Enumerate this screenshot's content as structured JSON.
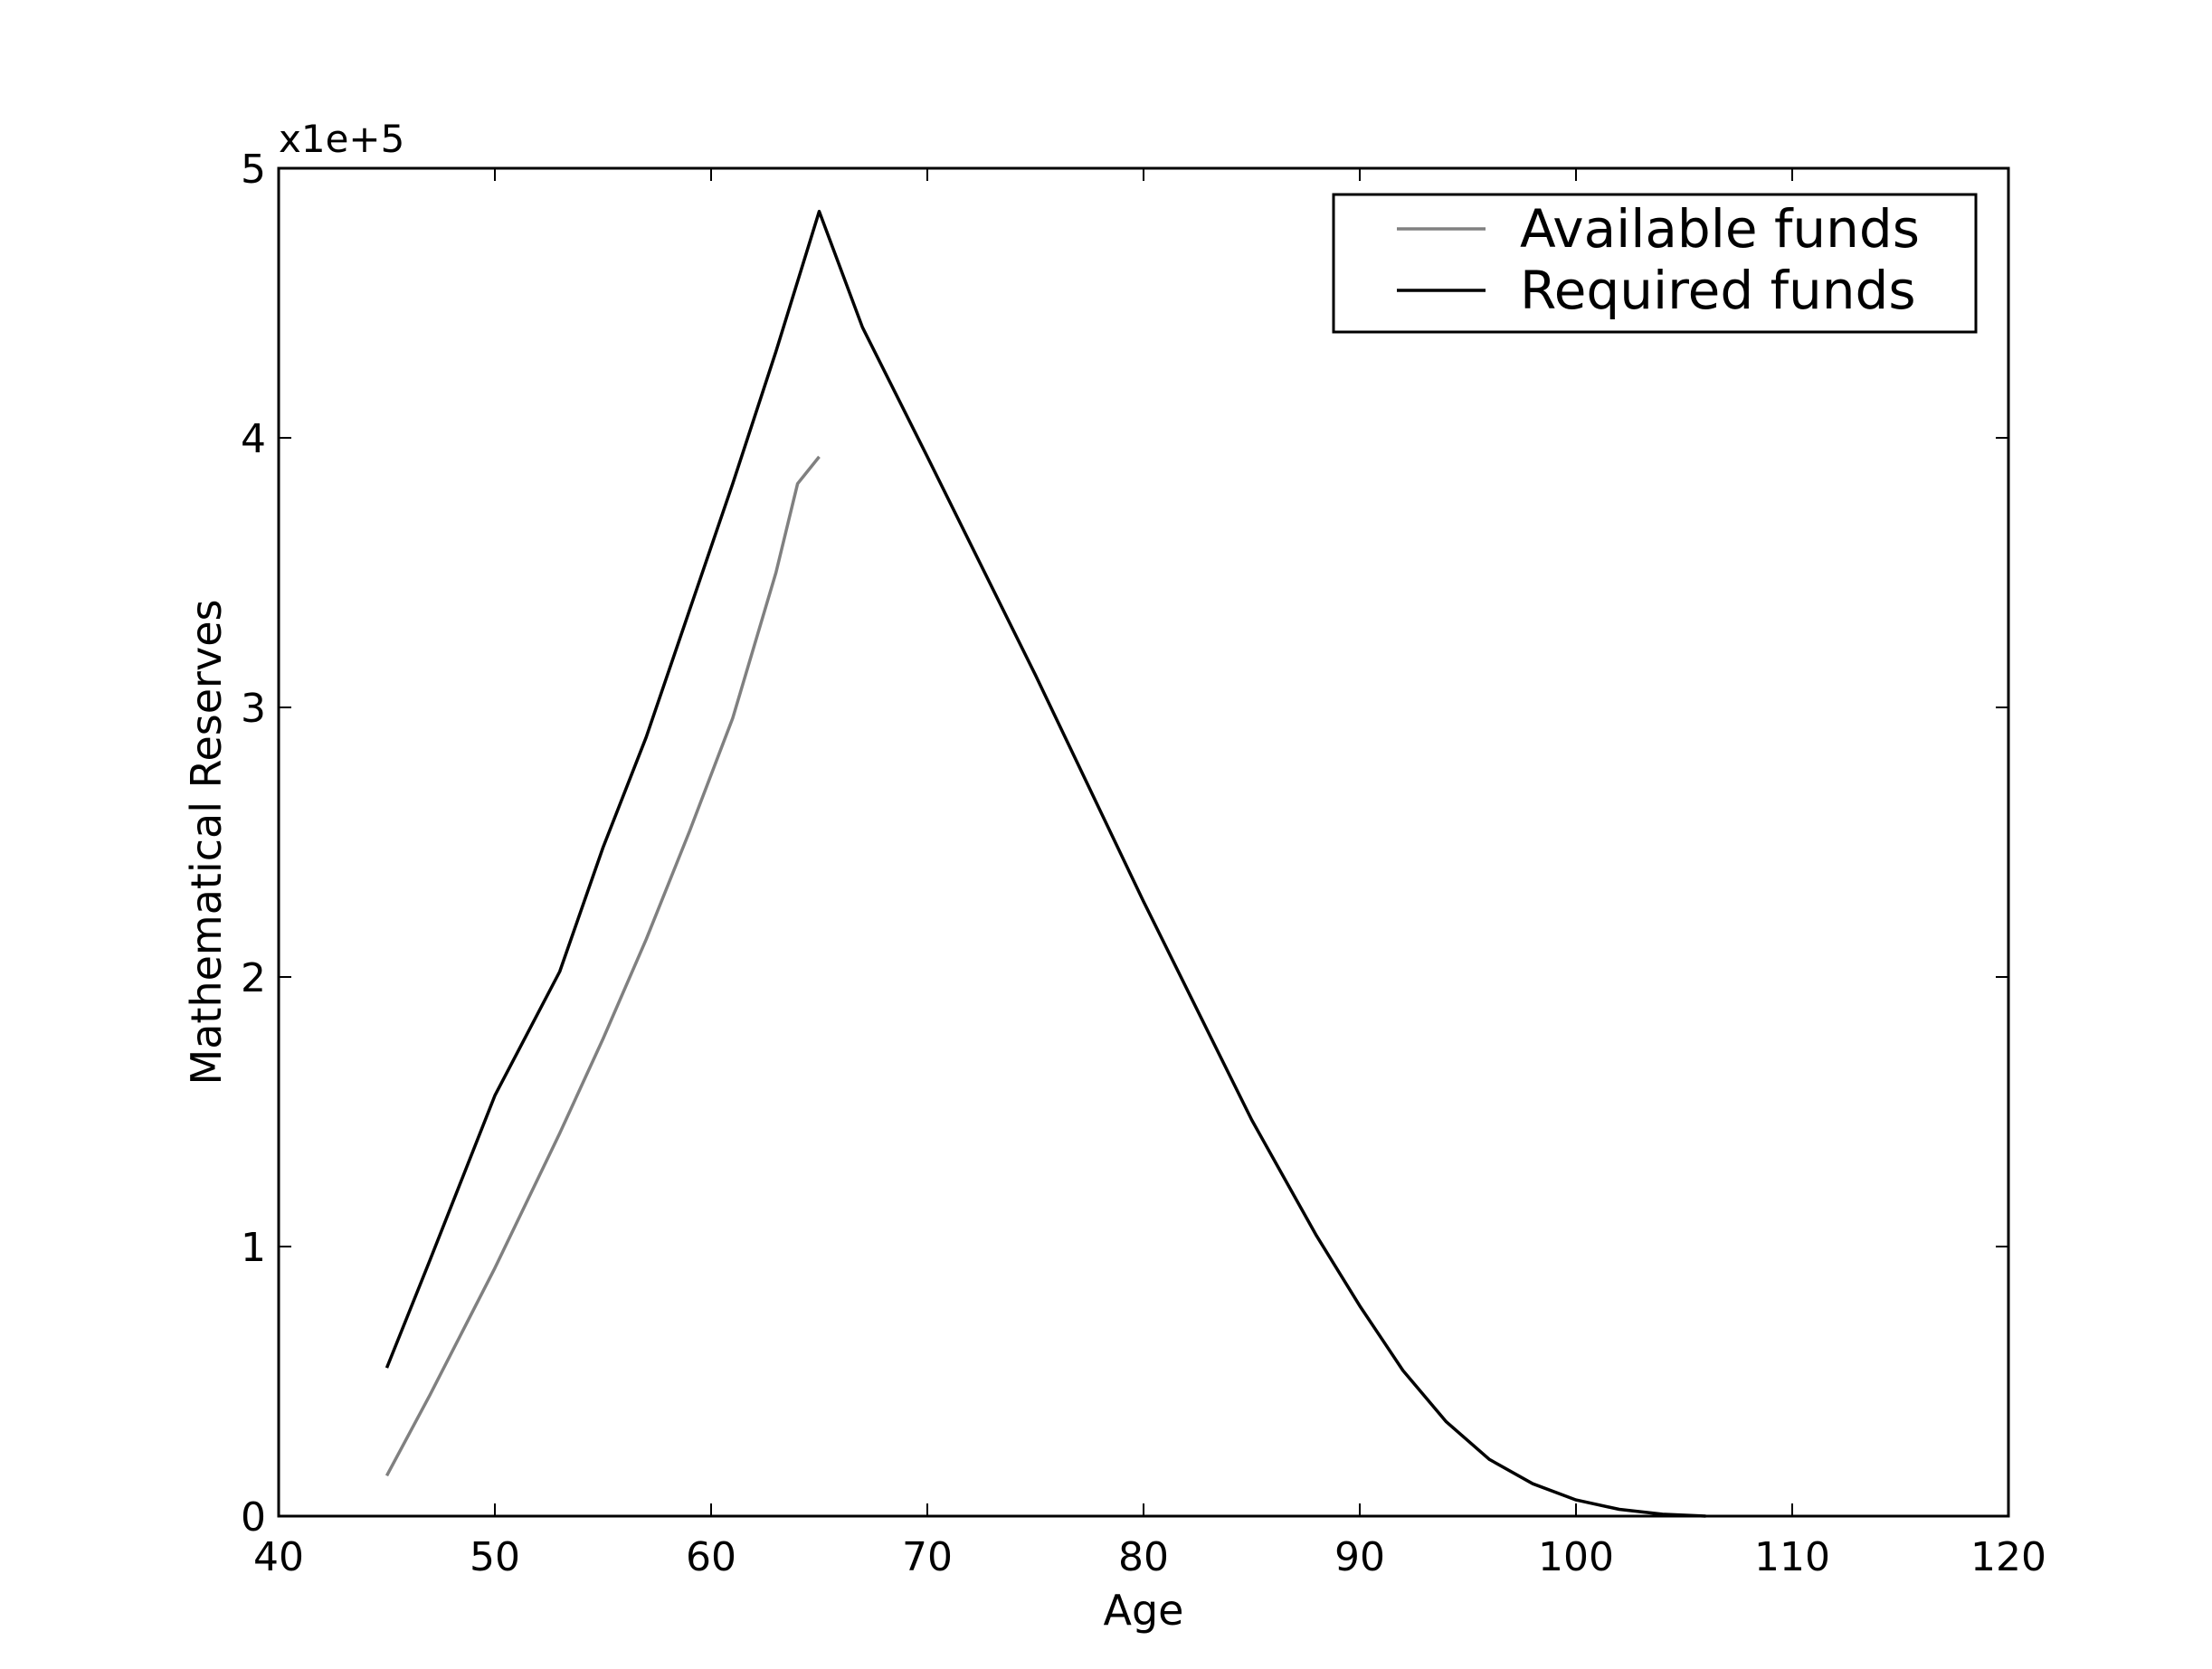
{
  "chart_data": {
    "type": "line",
    "title": "",
    "xlabel": "Age",
    "ylabel": "Mathematical Reserves",
    "xlim": [
      40,
      120
    ],
    "ylim": [
      0,
      5
    ],
    "y_offset_label": "x1e+5",
    "x_ticks": [
      {
        "value": 40,
        "label": "40"
      },
      {
        "value": 50,
        "label": "50"
      },
      {
        "value": 60,
        "label": "60"
      },
      {
        "value": 70,
        "label": "70"
      },
      {
        "value": 80,
        "label": "80"
      },
      {
        "value": 90,
        "label": "90"
      },
      {
        "value": 100,
        "label": "100"
      },
      {
        "value": 110,
        "label": "110"
      },
      {
        "value": 120,
        "label": "120"
      }
    ],
    "y_ticks": [
      {
        "value": 0,
        "label": "0"
      },
      {
        "value": 1,
        "label": "1"
      },
      {
        "value": 2,
        "label": "2"
      },
      {
        "value": 3,
        "label": "3"
      },
      {
        "value": 4,
        "label": "4"
      },
      {
        "value": 5,
        "label": "5"
      }
    ],
    "legend_position": "top-right",
    "grid": false,
    "series": [
      {
        "name": "Available funds",
        "color": "#808080",
        "points": [
          [
            45,
            0.15
          ],
          [
            47,
            0.45
          ],
          [
            50,
            0.92
          ],
          [
            53,
            1.42
          ],
          [
            55,
            1.77
          ],
          [
            57,
            2.14
          ],
          [
            59,
            2.54
          ],
          [
            61,
            2.96
          ],
          [
            63,
            3.5
          ],
          [
            64,
            3.83
          ],
          [
            65,
            3.93
          ]
        ]
      },
      {
        "name": "Required funds",
        "color": "#000000",
        "points": [
          [
            45,
            0.55
          ],
          [
            47,
            0.95
          ],
          [
            50,
            1.56
          ],
          [
            53,
            2.02
          ],
          [
            55,
            2.48
          ],
          [
            57,
            2.89
          ],
          [
            59,
            3.36
          ],
          [
            61,
            3.83
          ],
          [
            63,
            4.32
          ],
          [
            65,
            4.84
          ],
          [
            67,
            4.41
          ],
          [
            70,
            3.93
          ],
          [
            75,
            3.12
          ],
          [
            80,
            2.28
          ],
          [
            85,
            1.47
          ],
          [
            88,
            1.04
          ],
          [
            90,
            0.78
          ],
          [
            92,
            0.54
          ],
          [
            94,
            0.35
          ],
          [
            96,
            0.21
          ],
          [
            98,
            0.12
          ],
          [
            100,
            0.06
          ],
          [
            102,
            0.025
          ],
          [
            104,
            0.007
          ],
          [
            106,
            0.0
          ]
        ]
      }
    ]
  }
}
